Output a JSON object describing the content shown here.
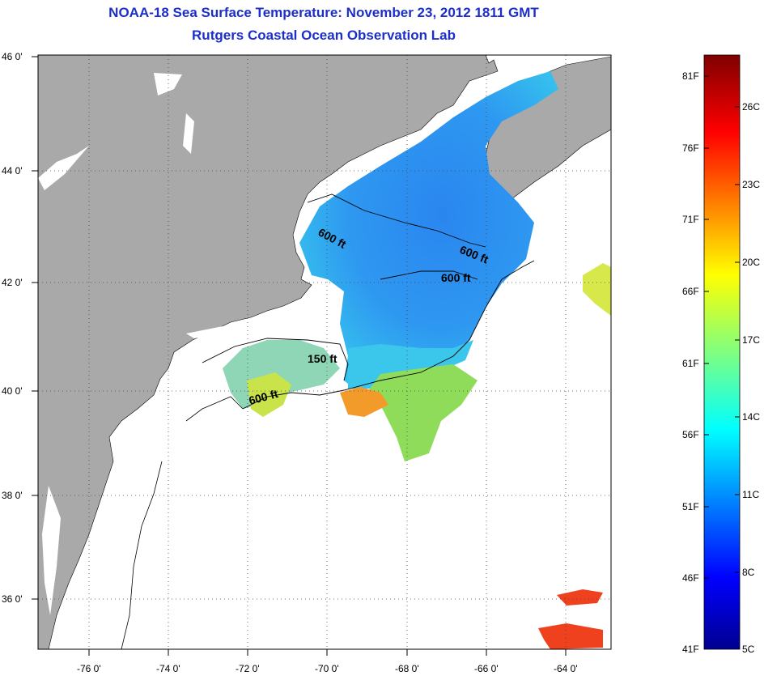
{
  "header": {
    "title": "NOAA-18 Sea Surface Temperature:  November 23, 2012 1811 GMT",
    "subtitle": "Rutgers Coastal Ocean Observation Lab"
  },
  "map": {
    "lon_ticks": [
      "-76 0'",
      "-74 0'",
      "-72 0'",
      "-70 0'",
      "-68 0'",
      "-66 0'",
      "-64 0'"
    ],
    "lat_ticks": [
      "46 0'",
      "44 0'",
      "42 0'",
      "40 0'",
      "38 0'",
      "36 0'"
    ],
    "lon_range": [
      -77,
      -62.6
    ],
    "lat_range": [
      35,
      46
    ],
    "grid": "dotted",
    "contour_labels": [
      "600 ft",
      "600 ft",
      "600 ft",
      "150 ft",
      "600 ft"
    ],
    "colors": {
      "land": "#a9a9a9",
      "no_data": "#ffffff",
      "sst_cold": "#1f6fe8",
      "sst_mid": "#37c6ef",
      "sst_warm": "#f0a020"
    }
  },
  "colorbar": {
    "fahrenheit_labels": [
      "81F",
      "76F",
      "71F",
      "66F",
      "61F",
      "56F",
      "51F",
      "46F",
      "41F"
    ],
    "celsius_labels": [
      "26C",
      "23C",
      "20C",
      "17C",
      "14C",
      "11C",
      "8C",
      "5C"
    ],
    "range_f": [
      41,
      82
    ],
    "colormap": "jet"
  }
}
